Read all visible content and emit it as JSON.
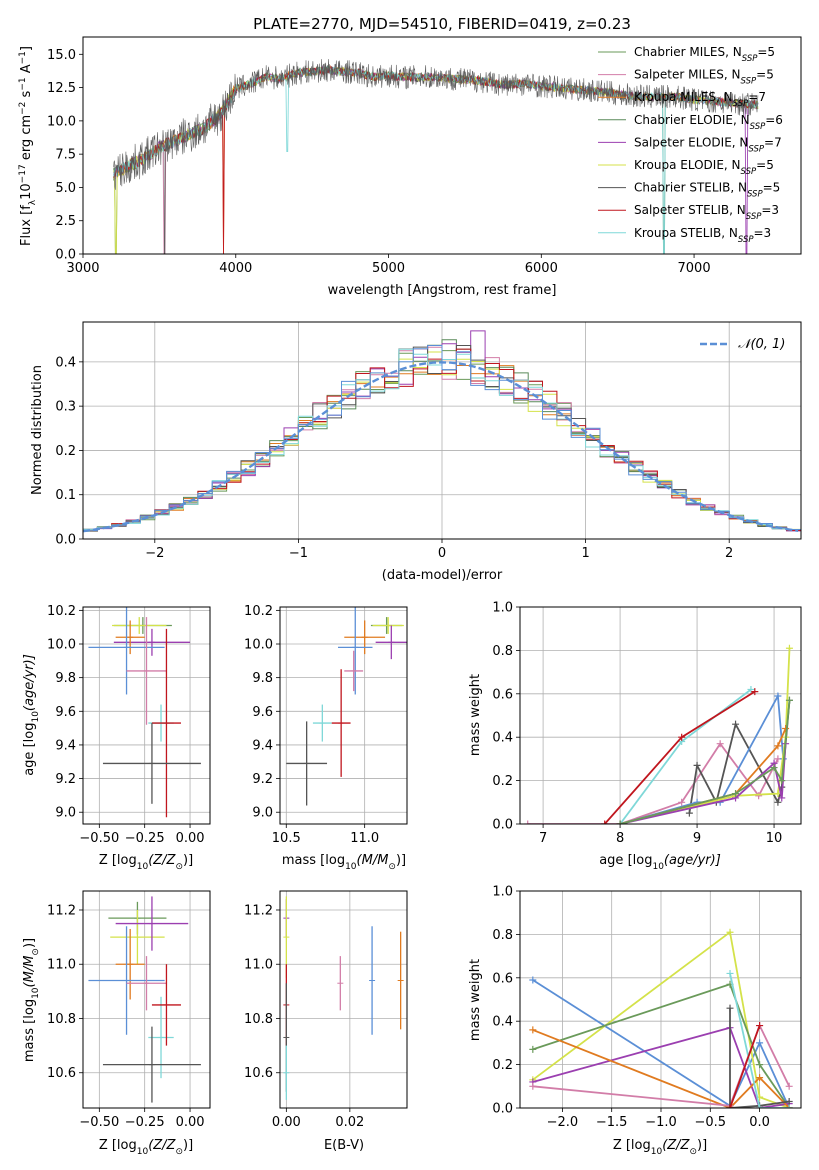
{
  "chart_data": [
    {
      "id": "spectrum",
      "type": "line",
      "title": "PLATE=2770, MJD=54510, FIBERID=0419, z=0.23",
      "xlabel": "wavelength [Angstrom, rest frame]",
      "ylabel": "Flux [f$_\\lambda$10$^{-17}$ erg cm$^{-2}$ s$^{-1}$ A$^{-1}$]",
      "ylabel_parts": {
        "a": "Flux [f",
        "b": "λ",
        "c": "10",
        "d": "−17",
        "e": " erg cm",
        "f": "−2",
        "g": " s",
        "h": "−1",
        "i": " A",
        "j": "−1",
        "k": "]"
      },
      "xlim": [
        3000,
        7700
      ],
      "ylim": [
        0,
        16.3
      ],
      "xticks": [
        3000,
        4000,
        5000,
        6000,
        7000
      ],
      "yticks": [
        0.0,
        2.5,
        5.0,
        7.5,
        10.0,
        12.5,
        15.0
      ],
      "legend_position": "right",
      "data_profile": {
        "wavelength": [
          3200,
          3300,
          3400,
          3500,
          3600,
          3700,
          3800,
          3900,
          4000,
          4100,
          4200,
          4300,
          4400,
          4500,
          4600,
          4700,
          4800,
          4900,
          5000,
          5100,
          5200,
          5300,
          5400,
          5500,
          5600,
          5700,
          5800,
          5900,
          6000,
          6100,
          6200,
          6300,
          6400,
          6500,
          6600,
          6700,
          6800,
          6900,
          7000,
          7100,
          7200,
          7300,
          7400
        ],
        "flux": [
          6.0,
          6.6,
          7.2,
          8.0,
          8.5,
          9.0,
          9.5,
          10.5,
          12.4,
          12.8,
          13.3,
          13.2,
          13.6,
          13.7,
          13.8,
          13.7,
          13.6,
          13.3,
          13.4,
          13.3,
          13.3,
          13.3,
          13.2,
          13.1,
          13.0,
          12.8,
          12.7,
          12.8,
          12.6,
          12.5,
          12.4,
          12.3,
          12.2,
          12.0,
          11.9,
          11.8,
          11.8,
          11.8,
          11.6,
          11.5,
          11.4,
          11.3,
          11.2
        ]
      },
      "series": [
        {
          "name_a": "Chabrier MILES, N",
          "name_b": "SSP",
          "name_c": "=5",
          "color": "#6a9a5a"
        },
        {
          "name_a": "Salpeter MILES, N",
          "name_b": "SSP",
          "name_c": "=5",
          "color": "#d27da8"
        },
        {
          "name_a": "Kroupa MILES, N",
          "name_b": "SSP",
          "name_c": "=7",
          "color": "#e07b20"
        },
        {
          "name_a": "Chabrier ELODIE, N",
          "name_b": "SSP",
          "name_c": "=6",
          "color": "#5a8a5a"
        },
        {
          "name_a": "Salpeter ELODIE, N",
          "name_b": "SSP",
          "name_c": "=7",
          "color": "#9b3fb0"
        },
        {
          "name_a": "Kroupa ELODIE, N",
          "name_b": "SSP",
          "name_c": "=5",
          "color": "#d4e24a"
        },
        {
          "name_a": "Chabrier STELIB, N",
          "name_b": "SSP",
          "name_c": "=5",
          "color": "#555555"
        },
        {
          "name_a": "Salpeter STELIB, N",
          "name_b": "SSP",
          "name_c": "=3",
          "color": "#c0161e"
        },
        {
          "name_a": "Kroupa STELIB, N",
          "name_b": "SSP",
          "name_c": "=3",
          "color": "#7fd8d8"
        }
      ]
    },
    {
      "id": "residuals",
      "type": "histogram",
      "xlabel": "(data-model)/error",
      "ylabel": "Normed distribution",
      "xlim": [
        -2.5,
        2.5
      ],
      "ylim": [
        0,
        0.49
      ],
      "xticks": [
        -2,
        -1,
        0,
        1,
        2
      ],
      "xtick_labels": [
        "−2",
        "−1",
        "0",
        "1",
        "2"
      ],
      "yticks": [
        0.0,
        0.1,
        0.2,
        0.3,
        0.4
      ],
      "legend": "𝒩(0, 1)",
      "bin_width": 0.1,
      "reference_curve": {
        "name": "N(0,1)",
        "mean": 0,
        "sigma": 1,
        "color": "#5b8fd6"
      },
      "series_colors": [
        "#6a9a5a",
        "#d27da8",
        "#e07b20",
        "#5a8a5a",
        "#9b3fb0",
        "#d4e24a",
        "#555555",
        "#c0161e",
        "#7fd8d8",
        "#5b8fd6"
      ]
    },
    {
      "id": "age_vs_Z",
      "type": "errorbar",
      "xlabel": "Z [log",
      "xlabel_sub": "10",
      "xlabel_rest": "(Z/Z",
      "xlabel_end": ")]",
      "ylabel": "age  [log",
      "ylabel_sub": "10",
      "ylabel_rest": "(age/yr)]",
      "xlim": [
        -0.59,
        0.11
      ],
      "ylim": [
        8.93,
        10.22
      ],
      "xticks": [
        -0.5,
        -0.25,
        0.0
      ],
      "xtick_labels": [
        "−0.50",
        "−0.25",
        "0.00"
      ],
      "yticks": [
        9.0,
        9.2,
        9.4,
        9.6,
        9.8,
        10.0,
        10.2
      ],
      "points": [
        {
          "x": -0.26,
          "y": 10.11,
          "xerr": 0.16,
          "yerr": 0.05,
          "color": "#6a9a5a"
        },
        {
          "x": -0.28,
          "y": 10.11,
          "xerr": 0.15,
          "yerr": 0.05,
          "color": "#d4e24a"
        },
        {
          "x": -0.21,
          "y": 10.01,
          "xerr": 0.21,
          "yerr": 0.08,
          "color": "#9b3fb0"
        },
        {
          "x": -0.33,
          "y": 10.04,
          "xerr": 0.08,
          "yerr": 0.1,
          "color": "#e07b20"
        },
        {
          "x": -0.35,
          "y": 9.98,
          "xerr": 0.21,
          "yerr": 0.28,
          "color": "#5b8fd6"
        },
        {
          "x": -0.24,
          "y": 9.84,
          "xerr": 0.11,
          "yerr": 0.32,
          "color": "#d27da8"
        },
        {
          "x": -0.16,
          "y": 9.53,
          "xerr": 0.07,
          "yerr": 0.11,
          "color": "#7fd8d8"
        },
        {
          "x": -0.13,
          "y": 9.53,
          "xerr": 0.08,
          "yerr": 0.56,
          "color": "#c0161e"
        },
        {
          "x": -0.21,
          "y": 9.29,
          "xerr": 0.27,
          "yerr": 0.24,
          "color": "#555555"
        }
      ]
    },
    {
      "id": "age_vs_mass",
      "type": "errorbar",
      "xlabel": "mass [log",
      "xlabel_sub": "10",
      "xlabel_rest": "(M/M",
      "xlabel_end": ")]",
      "xlim": [
        10.46,
        11.27
      ],
      "ylim": [
        8.93,
        10.22
      ],
      "xticks": [
        10.5,
        11.0
      ],
      "xtick_labels": [
        "10.5",
        "11.0"
      ],
      "yticks": [
        9.0,
        9.2,
        9.4,
        9.6,
        9.8,
        10.0,
        10.2
      ],
      "points": [
        {
          "x": 11.14,
          "y": 10.11,
          "xerr": 0.1,
          "yerr": 0.05,
          "color": "#6a9a5a"
        },
        {
          "x": 11.15,
          "y": 10.11,
          "xerr": 0.1,
          "yerr": 0.05,
          "color": "#d4e24a"
        },
        {
          "x": 11.17,
          "y": 10.01,
          "xerr": 0.1,
          "yerr": 0.1,
          "color": "#9b3fb0"
        },
        {
          "x": 11.0,
          "y": 10.04,
          "xerr": 0.13,
          "yerr": 0.1,
          "color": "#e07b20"
        },
        {
          "x": 10.94,
          "y": 9.98,
          "xerr": 0.11,
          "yerr": 0.28,
          "color": "#5b8fd6"
        },
        {
          "x": 10.93,
          "y": 9.84,
          "xerr": 0.06,
          "yerr": 0.12,
          "color": "#d27da8"
        },
        {
          "x": 10.73,
          "y": 9.53,
          "xerr": 0.06,
          "yerr": 0.11,
          "color": "#7fd8d8"
        },
        {
          "x": 10.85,
          "y": 9.53,
          "xerr": 0.06,
          "yerr": 0.32,
          "color": "#c0161e"
        },
        {
          "x": 10.63,
          "y": 9.29,
          "xerr": 0.13,
          "yerr": 0.25,
          "color": "#555555"
        }
      ]
    },
    {
      "id": "massweight_vs_age",
      "type": "line",
      "xlabel": "age  [log",
      "xlabel_sub": "10",
      "xlabel_rest": "(age/yr)]",
      "ylabel": "mass weight",
      "xlim": [
        6.7,
        10.35
      ],
      "ylim": [
        0,
        1.0
      ],
      "xticks": [
        7,
        8,
        9,
        10
      ],
      "yticks": [
        0.0,
        0.2,
        0.4,
        0.6,
        0.8,
        1.0
      ],
      "series": [
        {
          "color": "#d27da8",
          "x": [
            6.8,
            8.0,
            8.8,
            9.3,
            9.8,
            10.05
          ],
          "y": [
            0.0,
            0.0,
            0.1,
            0.37,
            0.13,
            0.3
          ]
        },
        {
          "color": "#7fd8d8",
          "x": [
            8.0,
            8.8,
            9.7
          ],
          "y": [
            0.0,
            0.38,
            0.62
          ]
        },
        {
          "color": "#c0161e",
          "x": [
            7.8,
            8.8,
            9.75
          ],
          "y": [
            0.0,
            0.4,
            0.61
          ]
        },
        {
          "color": "#555555",
          "x": [
            8.9,
            9.0,
            9.25,
            9.5,
            10.05,
            10.1,
            10.2
          ],
          "y": [
            0.05,
            0.27,
            0.1,
            0.46,
            0.1,
            0.17,
            0.57
          ]
        },
        {
          "color": "#5b8fd6",
          "x": [
            8.0,
            9.0,
            9.3,
            10.05,
            10.12
          ],
          "y": [
            0.0,
            0.1,
            0.1,
            0.59,
            0.3
          ]
        },
        {
          "color": "#d4e24a",
          "x": [
            8.0,
            9.5,
            10.05,
            10.15,
            10.2
          ],
          "y": [
            0.0,
            0.13,
            0.14,
            0.4,
            0.81
          ]
        },
        {
          "color": "#e07b20",
          "x": [
            8.0,
            9.5,
            10.05,
            10.15
          ],
          "y": [
            0.0,
            0.14,
            0.36,
            0.44
          ]
        },
        {
          "color": "#9b3fb0",
          "x": [
            8.0,
            9.5,
            10.0,
            10.1,
            10.15
          ],
          "y": [
            0.0,
            0.12,
            0.28,
            0.12,
            0.37
          ]
        },
        {
          "color": "#6a9a5a",
          "x": [
            8.0,
            9.5,
            10.0,
            10.1,
            10.2
          ],
          "y": [
            0.0,
            0.14,
            0.26,
            0.2,
            0.57
          ]
        }
      ]
    },
    {
      "id": "mass_vs_Z",
      "type": "errorbar",
      "xlabel": "Z [log",
      "xlabel_sub": "10",
      "xlabel_rest": "(Z/Z",
      "xlabel_end": ")]",
      "ylabel": "mass [log",
      "ylabel_sub": "10",
      "ylabel_rest": "(M/M",
      "ylabel_end": ")]",
      "xlim": [
        -0.59,
        0.11
      ],
      "ylim": [
        10.47,
        11.27
      ],
      "xticks": [
        -0.5,
        -0.25,
        0.0
      ],
      "xtick_labels": [
        "−0.50",
        "−0.25",
        "0.00"
      ],
      "yticks": [
        10.6,
        10.8,
        11.0,
        11.2
      ],
      "points": [
        {
          "x": -0.29,
          "y": 11.17,
          "xerr": 0.16,
          "yerr": 0.06,
          "color": "#6a9a5a"
        },
        {
          "x": -0.29,
          "y": 11.1,
          "xerr": 0.15,
          "yerr": 0.1,
          "color": "#d4e24a"
        },
        {
          "x": -0.21,
          "y": 11.15,
          "xerr": 0.2,
          "yerr": 0.1,
          "color": "#9b3fb0"
        },
        {
          "x": -0.33,
          "y": 11.0,
          "xerr": 0.08,
          "yerr": 0.13,
          "color": "#e07b20"
        },
        {
          "x": -0.35,
          "y": 10.94,
          "xerr": 0.21,
          "yerr": 0.2,
          "color": "#5b8fd6"
        },
        {
          "x": -0.24,
          "y": 10.93,
          "xerr": 0.11,
          "yerr": 0.1,
          "color": "#d27da8"
        },
        {
          "x": -0.16,
          "y": 10.73,
          "xerr": 0.07,
          "yerr": 0.15,
          "color": "#7fd8d8"
        },
        {
          "x": -0.13,
          "y": 10.85,
          "xerr": 0.08,
          "yerr": 0.15,
          "color": "#c0161e"
        },
        {
          "x": -0.21,
          "y": 10.63,
          "xerr": 0.27,
          "yerr": 0.14,
          "color": "#555555"
        }
      ]
    },
    {
      "id": "mass_vs_ebv",
      "type": "errorbar",
      "xlabel": "E(B-V)",
      "xlim": [
        -0.002,
        0.038
      ],
      "ylim": [
        10.47,
        11.27
      ],
      "xticks": [
        0.0,
        0.02
      ],
      "xtick_labels": [
        "0.00",
        "0.02"
      ],
      "yticks": [
        10.6,
        10.8,
        11.0,
        11.2
      ],
      "points": [
        {
          "x": 0.0,
          "y": 11.17,
          "yerr": 0.07,
          "color": "#9b3fb0"
        },
        {
          "x": 0.0,
          "y": 11.1,
          "yerr": 0.15,
          "color": "#d4e24a"
        },
        {
          "x": 0.0,
          "y": 10.85,
          "yerr": 0.15,
          "color": "#c0161e"
        },
        {
          "x": 0.0,
          "y": 10.73,
          "yerr": 0.2,
          "color": "#555555"
        },
        {
          "x": 0.0,
          "y": 10.6,
          "yerr": 0.1,
          "color": "#7fd8d8"
        },
        {
          "x": 0.017,
          "y": 10.93,
          "yerr": 0.1,
          "color": "#d27da8"
        },
        {
          "x": 0.027,
          "y": 10.94,
          "yerr": 0.2,
          "color": "#5b8fd6"
        },
        {
          "x": 0.036,
          "y": 10.94,
          "yerr": 0.18,
          "color": "#e07b20"
        }
      ]
    },
    {
      "id": "massweight_vs_Z",
      "type": "line",
      "xlabel": "Z [log",
      "xlabel_sub": "10",
      "xlabel_rest": "(Z/Z",
      "xlabel_end": ")]",
      "ylabel": "mass weight",
      "xlim": [
        -2.43,
        0.42
      ],
      "ylim": [
        0,
        1.0
      ],
      "xticks": [
        -2.0,
        -1.5,
        -1.0,
        -0.5,
        0.0
      ],
      "xtick_labels": [
        "−2.0",
        "−1.5",
        "−1.0",
        "−0.5",
        "0.0"
      ],
      "yticks": [
        0.0,
        0.2,
        0.4,
        0.6,
        0.8,
        1.0
      ],
      "series": [
        {
          "color": "#5b8fd6",
          "x": [
            -2.3,
            -0.3,
            0.0,
            0.3
          ],
          "y": [
            0.59,
            0.01,
            0.3,
            0.0
          ]
        },
        {
          "color": "#d4e24a",
          "x": [
            -2.3,
            -0.3,
            0.0,
            0.3
          ],
          "y": [
            0.13,
            0.81,
            0.05,
            0.0
          ]
        },
        {
          "color": "#6a9a5a",
          "x": [
            -2.3,
            -0.3,
            0.0,
            0.3
          ],
          "y": [
            0.27,
            0.57,
            0.2,
            0.0
          ]
        },
        {
          "color": "#9b3fb0",
          "x": [
            -2.3,
            -0.3,
            0.0,
            0.3
          ],
          "y": [
            0.12,
            0.37,
            0.0,
            0.02
          ]
        },
        {
          "color": "#e07b20",
          "x": [
            -2.3,
            -0.3,
            0.0,
            0.3
          ],
          "y": [
            0.36,
            0.0,
            0.14,
            0.0
          ]
        },
        {
          "color": "#d27da8",
          "x": [
            -2.3,
            -0.3,
            0.0,
            0.3
          ],
          "y": [
            0.1,
            0.01,
            0.38,
            0.1
          ]
        },
        {
          "color": "#555555",
          "x": [
            -0.3,
            -0.3,
            0.0,
            0.3
          ],
          "y": [
            0.46,
            0.0,
            0.01,
            0.03
          ]
        },
        {
          "color": "#7fd8d8",
          "x": [
            -0.3,
            0.0,
            0.3
          ],
          "y": [
            0.62,
            0.0,
            0.0
          ]
        },
        {
          "color": "#c0161e",
          "x": [
            -0.3,
            0.0
          ],
          "y": [
            0.0,
            0.38
          ]
        }
      ]
    }
  ]
}
